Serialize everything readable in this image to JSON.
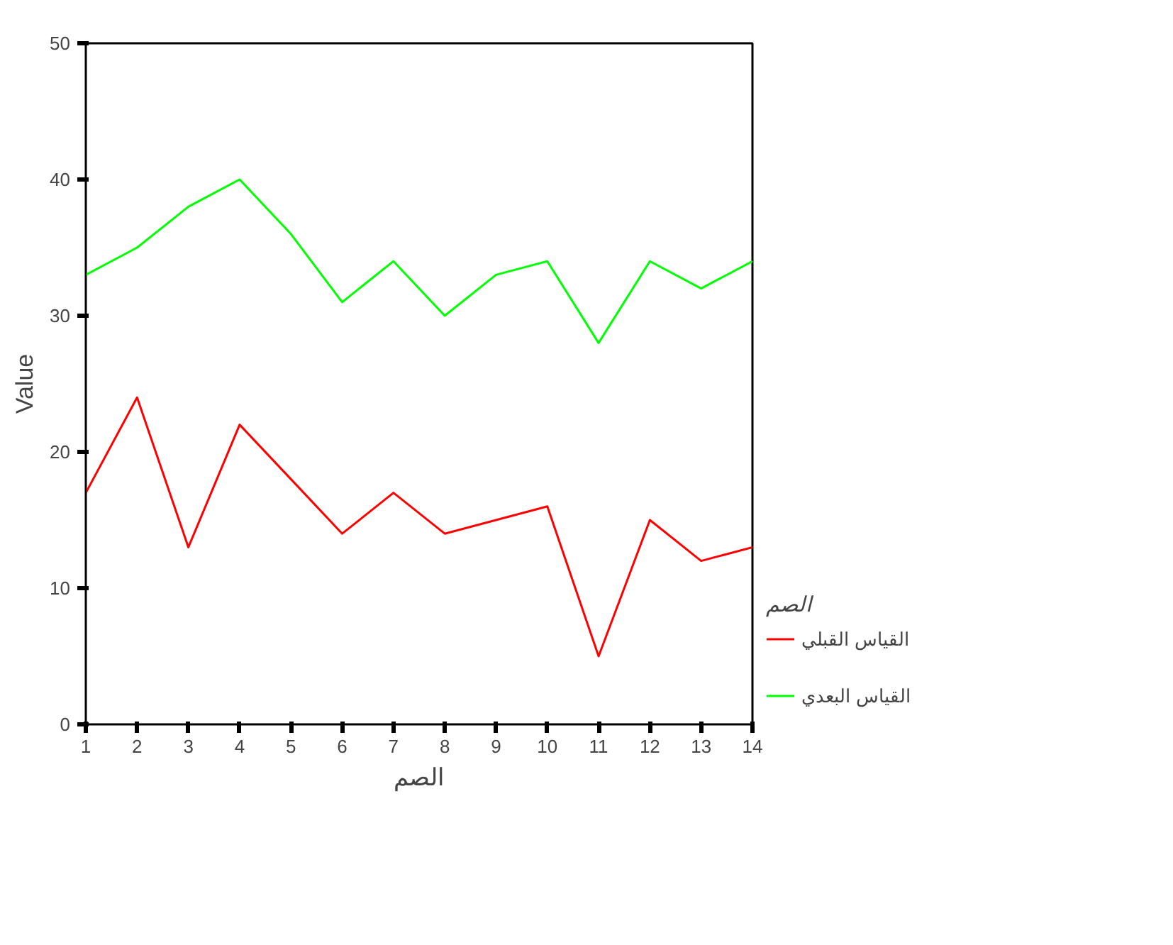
{
  "chart_data": {
    "type": "line",
    "xlabel": "الصم",
    "ylabel": "Value",
    "legend_title": "الصم",
    "x": [
      1,
      2,
      3,
      4,
      5,
      6,
      7,
      8,
      9,
      10,
      11,
      12,
      13,
      14
    ],
    "series": [
      {
        "name": "القياس القبلي",
        "color": "#ff0000",
        "values": [
          17,
          24,
          13,
          22,
          18,
          14,
          17,
          14,
          15,
          16,
          5,
          15,
          12,
          13
        ]
      },
      {
        "name": "القياس البعدي",
        "color": "#00ff00",
        "values": [
          33,
          35,
          38,
          40,
          36,
          31,
          34,
          30,
          33,
          34,
          28,
          34,
          32,
          34
        ]
      }
    ],
    "xlim": [
      1,
      14
    ],
    "xticks": [
      1,
      2,
      3,
      4,
      5,
      6,
      7,
      8,
      9,
      10,
      11,
      12,
      13,
      14
    ],
    "ylim": [
      0,
      50
    ],
    "yticks": [
      0,
      10,
      20,
      30,
      40,
      50
    ],
    "grid": false,
    "legend": "right",
    "marker": "none",
    "line_style": "solid"
  }
}
